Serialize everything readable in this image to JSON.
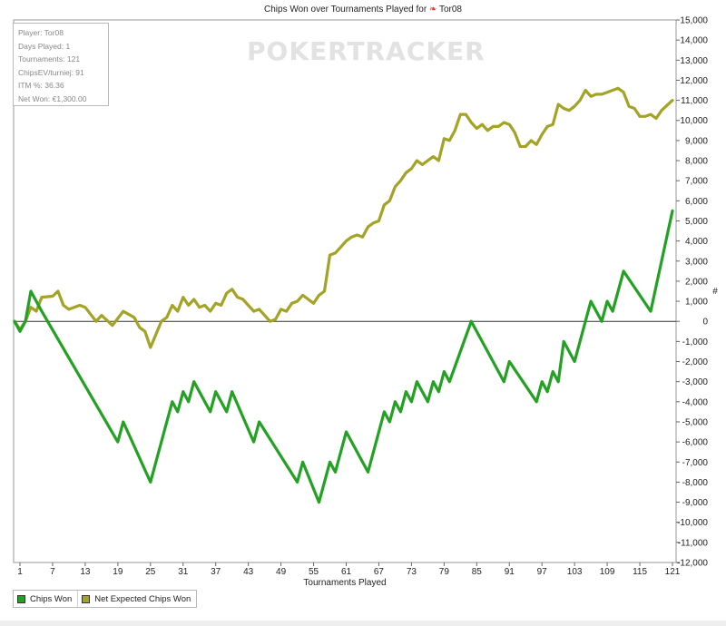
{
  "chart_data": {
    "type": "line",
    "title": "Chips Won over Tournaments Played for",
    "title_player": "Tor08",
    "xlabel": "Tournaments Played",
    "ylabel": "#",
    "xlim": [
      1,
      121
    ],
    "ylim": [
      -12000,
      15000
    ],
    "x_ticks": [
      1,
      7,
      13,
      19,
      25,
      31,
      37,
      43,
      49,
      55,
      61,
      67,
      73,
      79,
      85,
      91,
      97,
      103,
      109,
      115,
      121
    ],
    "y_ticks": [
      15000,
      14000,
      13000,
      12000,
      11000,
      10000,
      9000,
      8000,
      7000,
      6000,
      5000,
      4000,
      3000,
      2000,
      1000,
      0,
      -1000,
      -2000,
      -3000,
      -4000,
      -5000,
      -6000,
      -7000,
      -8000,
      -9000,
      -10000,
      -11000,
      -12000
    ],
    "y_tick_labels": [
      "15,000",
      "14,000",
      "13,000",
      "12,000",
      "11,000",
      "10,000",
      "9,000",
      "8,000",
      "7,000",
      "6,000",
      "5,000",
      "4,000",
      "3,000",
      "2,000",
      "1,000",
      "0",
      "-1,000",
      "-2,000",
      "-3,000",
      "-4,000",
      "-5,000",
      "-6,000",
      "-7,000",
      "-8,000",
      "-9,000",
      "-10,000",
      "-11,000",
      "-12,000"
    ],
    "legend_position": "bottom-left",
    "series": [
      {
        "name": "Chips Won",
        "color": "#22a122",
        "points": [
          [
            0,
            0
          ],
          [
            1,
            -500
          ],
          [
            2,
            0
          ],
          [
            3,
            1500
          ],
          [
            4,
            1000
          ],
          [
            5,
            500
          ],
          [
            19,
            -6000
          ],
          [
            20,
            -5000
          ],
          [
            25,
            -8000
          ],
          [
            29,
            -4000
          ],
          [
            30,
            -4500
          ],
          [
            31,
            -3500
          ],
          [
            32,
            -4000
          ],
          [
            33,
            -3000
          ],
          [
            36,
            -4500
          ],
          [
            37,
            -3500
          ],
          [
            39,
            -4500
          ],
          [
            40,
            -3500
          ],
          [
            44,
            -6000
          ],
          [
            45,
            -5000
          ],
          [
            52,
            -8000
          ],
          [
            53,
            -7000
          ],
          [
            56,
            -9000
          ],
          [
            58,
            -7000
          ],
          [
            59,
            -7500
          ],
          [
            61,
            -5500
          ],
          [
            65,
            -7500
          ],
          [
            68,
            -4500
          ],
          [
            69,
            -5000
          ],
          [
            70,
            -4000
          ],
          [
            71,
            -4500
          ],
          [
            72,
            -3500
          ],
          [
            73,
            -4000
          ],
          [
            74,
            -3000
          ],
          [
            76,
            -4000
          ],
          [
            77,
            -3000
          ],
          [
            78,
            -3500
          ],
          [
            79,
            -2500
          ],
          [
            80,
            -3000
          ],
          [
            84,
            0
          ],
          [
            90,
            -3000
          ],
          [
            91,
            -2000
          ],
          [
            96,
            -4000
          ],
          [
            97,
            -3000
          ],
          [
            98,
            -3500
          ],
          [
            99,
            -2500
          ],
          [
            100,
            -3000
          ],
          [
            101,
            -1000
          ],
          [
            103,
            -2000
          ],
          [
            106,
            1000
          ],
          [
            108,
            0
          ],
          [
            109,
            1000
          ],
          [
            110,
            500
          ],
          [
            112,
            2500
          ],
          [
            117,
            500
          ],
          [
            121,
            5500
          ]
        ]
      },
      {
        "name": "Net Expected Chips Won",
        "color": "#a3a326",
        "points": [
          [
            0,
            0
          ],
          [
            1,
            -400
          ],
          [
            2,
            0
          ],
          [
            3,
            700
          ],
          [
            4,
            500
          ],
          [
            5,
            1200
          ],
          [
            7,
            1250
          ],
          [
            8,
            1500
          ],
          [
            9,
            800
          ],
          [
            10,
            600
          ],
          [
            12,
            800
          ],
          [
            13,
            700
          ],
          [
            15,
            0
          ],
          [
            16,
            300
          ],
          [
            18,
            -200
          ],
          [
            20,
            500
          ],
          [
            22,
            200
          ],
          [
            23,
            -300
          ],
          [
            24,
            -500
          ],
          [
            25,
            -1300
          ],
          [
            27,
            0
          ],
          [
            28,
            200
          ],
          [
            29,
            800
          ],
          [
            30,
            500
          ],
          [
            31,
            1200
          ],
          [
            32,
            800
          ],
          [
            33,
            1100
          ],
          [
            34,
            700
          ],
          [
            35,
            800
          ],
          [
            36,
            500
          ],
          [
            37,
            900
          ],
          [
            38,
            800
          ],
          [
            39,
            1400
          ],
          [
            40,
            1600
          ],
          [
            41,
            1200
          ],
          [
            42,
            1100
          ],
          [
            43,
            800
          ],
          [
            44,
            500
          ],
          [
            45,
            600
          ],
          [
            47,
            0
          ],
          [
            48,
            100
          ],
          [
            49,
            600
          ],
          [
            50,
            500
          ],
          [
            51,
            900
          ],
          [
            52,
            1000
          ],
          [
            53,
            1300
          ],
          [
            54,
            1100
          ],
          [
            55,
            900
          ],
          [
            56,
            1300
          ],
          [
            57,
            1500
          ],
          [
            58,
            3300
          ],
          [
            59,
            3400
          ],
          [
            60,
            3700
          ],
          [
            61,
            4000
          ],
          [
            62,
            4200
          ],
          [
            63,
            4300
          ],
          [
            64,
            4200
          ],
          [
            65,
            4700
          ],
          [
            66,
            4900
          ],
          [
            67,
            5000
          ],
          [
            68,
            5800
          ],
          [
            69,
            6000
          ],
          [
            70,
            6700
          ],
          [
            71,
            7000
          ],
          [
            72,
            7400
          ],
          [
            73,
            7600
          ],
          [
            74,
            8000
          ],
          [
            75,
            7800
          ],
          [
            76,
            8000
          ],
          [
            77,
            8200
          ],
          [
            78,
            8000
          ],
          [
            79,
            9100
          ],
          [
            80,
            9000
          ],
          [
            81,
            9500
          ],
          [
            82,
            10300
          ],
          [
            83,
            10300
          ],
          [
            84,
            9900
          ],
          [
            85,
            9600
          ],
          [
            86,
            9800
          ],
          [
            87,
            9500
          ],
          [
            88,
            9700
          ],
          [
            89,
            9700
          ],
          [
            90,
            9900
          ],
          [
            91,
            9800
          ],
          [
            92,
            9400
          ],
          [
            93,
            8700
          ],
          [
            94,
            8700
          ],
          [
            95,
            9000
          ],
          [
            96,
            8800
          ],
          [
            97,
            9300
          ],
          [
            98,
            9700
          ],
          [
            99,
            9800
          ],
          [
            100,
            10800
          ],
          [
            101,
            10600
          ],
          [
            102,
            10500
          ],
          [
            103,
            10700
          ],
          [
            104,
            11000
          ],
          [
            105,
            11500
          ],
          [
            106,
            11200
          ],
          [
            107,
            11300
          ],
          [
            108,
            11300
          ],
          [
            109,
            11400
          ],
          [
            110,
            11500
          ],
          [
            111,
            11600
          ],
          [
            112,
            11400
          ],
          [
            113,
            10700
          ],
          [
            114,
            10600
          ],
          [
            115,
            10200
          ],
          [
            116,
            10200
          ],
          [
            117,
            10300
          ],
          [
            118,
            10100
          ],
          [
            119,
            10500
          ],
          [
            121,
            11000
          ]
        ]
      }
    ]
  },
  "info_box": {
    "player": "Player: Tor08",
    "days_played": "Days Played: 1",
    "tournaments": "Tournaments: 121",
    "chipsev": "ChipsEV/turniej: 91",
    "itm": "ITM %: 36.36",
    "net_won": "Net Won: €1,300.00"
  },
  "watermark": "POKERTRACKER",
  "legend": {
    "items": [
      {
        "label": "Chips Won",
        "color": "#22a122"
      },
      {
        "label": "Net Expected Chips Won",
        "color": "#a3a326"
      }
    ]
  }
}
